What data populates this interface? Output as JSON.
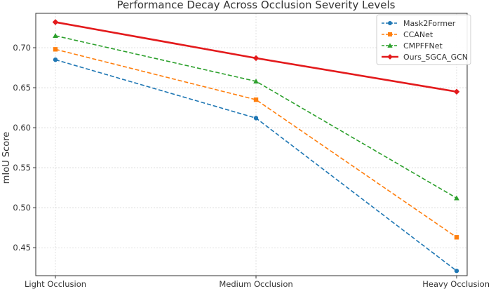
{
  "chart_data": {
    "type": "line",
    "title": "Performance Decay Across Occlusion Severity Levels",
    "xlabel": "",
    "ylabel": "mIoU Score",
    "categories": [
      "Light Occlusion",
      "Medium Occlusion",
      "Heavy Occlusion"
    ],
    "ylim": [
      0.415,
      0.743
    ],
    "yticks": [
      0.45,
      0.5,
      0.55,
      0.6,
      0.65,
      0.7
    ],
    "grid": true,
    "legend_position": "top-right",
    "series": [
      {
        "name": "Mask2Former",
        "values": [
          0.685,
          0.612,
          0.421
        ],
        "color": "#1f77b4",
        "marker": "circle",
        "dashed": true
      },
      {
        "name": "CCANet",
        "values": [
          0.698,
          0.635,
          0.463
        ],
        "color": "#ff7f0e",
        "marker": "square",
        "dashed": true
      },
      {
        "name": "CMPFFNet",
        "values": [
          0.715,
          0.658,
          0.512
        ],
        "color": "#2ca02c",
        "marker": "triangle",
        "dashed": true
      },
      {
        "name": "Ours_SGCA_GCN",
        "values": [
          0.732,
          0.687,
          0.645
        ],
        "color": "#e31a1c",
        "marker": "diamond",
        "dashed": false
      }
    ]
  }
}
